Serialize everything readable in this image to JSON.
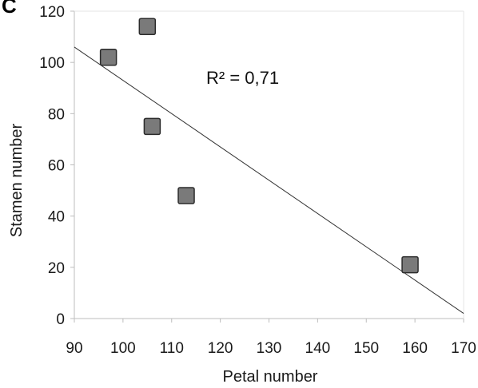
{
  "panel_label": "C",
  "chart_data": {
    "type": "scatter",
    "title": "",
    "xlabel": "Petal number",
    "ylabel": "Stamen number",
    "xlim": [
      90,
      170
    ],
    "ylim": [
      0,
      120
    ],
    "xticks": [
      "90",
      "100",
      "110",
      "120",
      "130",
      "140",
      "150",
      "160",
      "170"
    ],
    "yticks": [
      "0",
      "20",
      "40",
      "60",
      "80",
      "100",
      "120"
    ],
    "grid": false,
    "legend": "none",
    "points": [
      {
        "x": 97,
        "y": 102
      },
      {
        "x": 105,
        "y": 114
      },
      {
        "x": 106,
        "y": 75
      },
      {
        "x": 113,
        "y": 48
      },
      {
        "x": 159,
        "y": 21
      }
    ],
    "trendline": {
      "type": "linear",
      "x": [
        90,
        170
      ],
      "y": [
        106,
        2
      ]
    },
    "annotation": "R² = 0,71",
    "colors": {
      "marker_fill": "#7a7a7a",
      "marker_edge": "#2b2b2b",
      "trendline": "#333333",
      "axis": "#bdbdbd"
    }
  }
}
